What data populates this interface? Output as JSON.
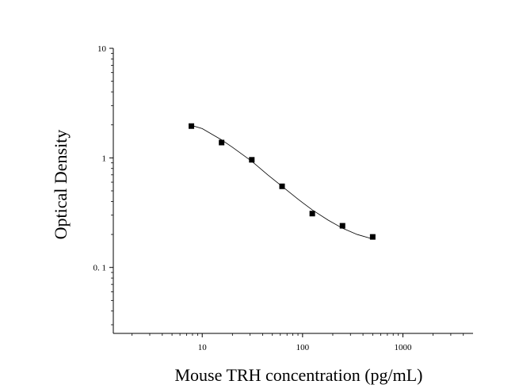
{
  "chart_data": {
    "type": "scatter",
    "title": "",
    "xlabel": "Mouse TRH concentration (pg/mL)",
    "ylabel": "Optical Density",
    "x_scale": "log",
    "y_scale": "log",
    "xlim": [
      1.3,
      5000
    ],
    "ylim": [
      0.025,
      10
    ],
    "x_ticks": [
      10,
      100,
      1000
    ],
    "x_tick_labels": [
      "10",
      "100",
      "1000"
    ],
    "y_ticks": [
      0.1,
      1,
      10
    ],
    "y_tick_labels": [
      "0. 1",
      "1",
      "10"
    ],
    "grid": false,
    "legend": "none",
    "series": [
      {
        "marker": "square",
        "x": [
          7.8,
          15.6,
          31.2,
          62.5,
          125,
          250,
          500
        ],
        "y": [
          1.95,
          1.38,
          0.96,
          0.55,
          0.31,
          0.24,
          0.19
        ]
      }
    ],
    "fit_curve": {
      "style": "smooth line",
      "x": [
        7.8,
        10,
        15.6,
        20,
        31.2,
        45,
        62.5,
        90,
        125,
        180,
        250,
        350,
        500
      ],
      "y": [
        1.98,
        1.85,
        1.46,
        1.25,
        0.93,
        0.7,
        0.55,
        0.42,
        0.335,
        0.27,
        0.228,
        0.2,
        0.182
      ]
    },
    "colors": {
      "marker": "#000000",
      "line": "#000000",
      "axis": "#000000"
    }
  }
}
